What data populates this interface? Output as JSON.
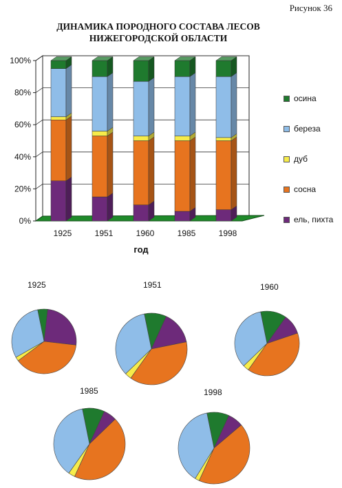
{
  "figure_label": "Рисунок 36",
  "colors": {
    "осина": "#1f7a2e",
    "береза": "#8fbde8",
    "дуб": "#f7ec4a",
    "сосна": "#e7741f",
    "ель, пихта": "#6d2a7a",
    "floor": "#1f8a2a"
  },
  "chart_data": [
    {
      "type": "bar",
      "stacked": true,
      "percent": true,
      "three_d": true,
      "title": "ДИНАМИКА ПОРОДНОГО СОСТАВА ЛЕСОВ НИЖЕГОРОДСКОЙ ОБЛАСТИ",
      "title_lines": [
        "ДИНАМИКА ПОРОДНОГО СОСТАВА ЛЕСОВ",
        "НИЖЕГОРОДСКОЙ ОБЛАСТИ"
      ],
      "xlabel": "год",
      "ylabel": "",
      "categories": [
        "1925",
        "1951",
        "1960",
        "1985",
        "1998"
      ],
      "yticks": [
        "0%",
        "20%",
        "40%",
        "60%",
        "80%",
        "100%"
      ],
      "ylim": [
        0,
        100
      ],
      "grid": true,
      "legend_position": "right",
      "legend_order": [
        "осина",
        "береза",
        "дуб",
        "сосна",
        "ель, пихта"
      ],
      "series": [
        {
          "name": "ель, пихта",
          "values": [
            25,
            15,
            10,
            6,
            7
          ]
        },
        {
          "name": "сосна",
          "values": [
            38,
            38,
            40,
            44,
            43
          ]
        },
        {
          "name": "дуб",
          "values": [
            2,
            3,
            3,
            3,
            2
          ]
        },
        {
          "name": "береза",
          "values": [
            30,
            34,
            34,
            37,
            38
          ]
        },
        {
          "name": "осина",
          "values": [
            5,
            10,
            13,
            10,
            10
          ]
        }
      ]
    },
    {
      "type": "pie",
      "title": "1925",
      "slices": [
        {
          "name": "осина",
          "value": 5
        },
        {
          "name": "ель, пихта",
          "value": 25
        },
        {
          "name": "сосна",
          "value": 38
        },
        {
          "name": "дуб",
          "value": 2
        },
        {
          "name": "береза",
          "value": 30
        }
      ]
    },
    {
      "type": "pie",
      "title": "1951",
      "slices": [
        {
          "name": "осина",
          "value": 10
        },
        {
          "name": "ель, пихта",
          "value": 15
        },
        {
          "name": "сосна",
          "value": 38
        },
        {
          "name": "дуб",
          "value": 3
        },
        {
          "name": "береза",
          "value": 34
        }
      ]
    },
    {
      "type": "pie",
      "title": "1960",
      "slices": [
        {
          "name": "осина",
          "value": 13
        },
        {
          "name": "ель, пихта",
          "value": 10
        },
        {
          "name": "сосна",
          "value": 40
        },
        {
          "name": "дуб",
          "value": 3
        },
        {
          "name": "береза",
          "value": 34
        }
      ]
    },
    {
      "type": "pie",
      "title": "1985",
      "slices": [
        {
          "name": "осина",
          "value": 10
        },
        {
          "name": "ель, пихта",
          "value": 6
        },
        {
          "name": "сосна",
          "value": 44
        },
        {
          "name": "дуб",
          "value": 3
        },
        {
          "name": "береза",
          "value": 37
        }
      ]
    },
    {
      "type": "pie",
      "title": "1998",
      "slices": [
        {
          "name": "осина",
          "value": 10
        },
        {
          "name": "ель, пихта",
          "value": 7
        },
        {
          "name": "сосна",
          "value": 43
        },
        {
          "name": "дуб",
          "value": 2
        },
        {
          "name": "береза",
          "value": 38
        }
      ]
    }
  ]
}
